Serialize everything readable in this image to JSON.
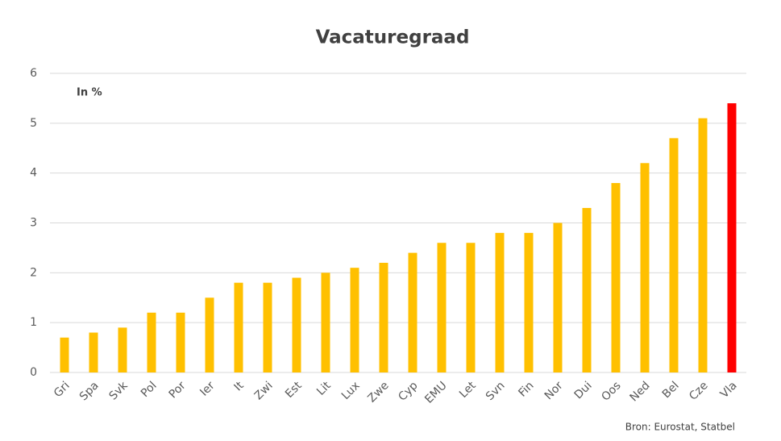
{
  "chart_data": {
    "type": "bar",
    "title": "Vacaturegraad",
    "annotation": "In %",
    "source": "Bron: Eurostat, Statbel",
    "categories": [
      "Gri",
      "Spa",
      "Svk",
      "Pol",
      "Por",
      "Ier",
      "It",
      "Zwi",
      "Est",
      "Lit",
      "Lux",
      "Zwe",
      "Cyp",
      "EMU",
      "Let",
      "Svn",
      "Fin",
      "Nor",
      "Dui",
      "Oos",
      "Ned",
      "Bel",
      "Cze",
      "Vla"
    ],
    "values": [
      0.7,
      0.8,
      0.9,
      1.2,
      1.2,
      1.5,
      1.8,
      1.8,
      1.9,
      2.0,
      2.1,
      2.2,
      2.4,
      2.6,
      2.6,
      2.8,
      2.8,
      3.0,
      3.3,
      3.8,
      4.2,
      4.7,
      5.1,
      5.4
    ],
    "colors": [
      "#FFC000",
      "#FFC000",
      "#FFC000",
      "#FFC000",
      "#FFC000",
      "#FFC000",
      "#FFC000",
      "#FFC000",
      "#FFC000",
      "#FFC000",
      "#FFC000",
      "#FFC000",
      "#FFC000",
      "#FFC000",
      "#FFC000",
      "#FFC000",
      "#FFC000",
      "#FFC000",
      "#FFC000",
      "#FFC000",
      "#FFC000",
      "#FFC000",
      "#FFC000",
      "#FF0000"
    ],
    "ylim": [
      0,
      6
    ],
    "yticks": [
      0,
      1,
      2,
      3,
      4,
      5,
      6
    ],
    "grid": true
  }
}
